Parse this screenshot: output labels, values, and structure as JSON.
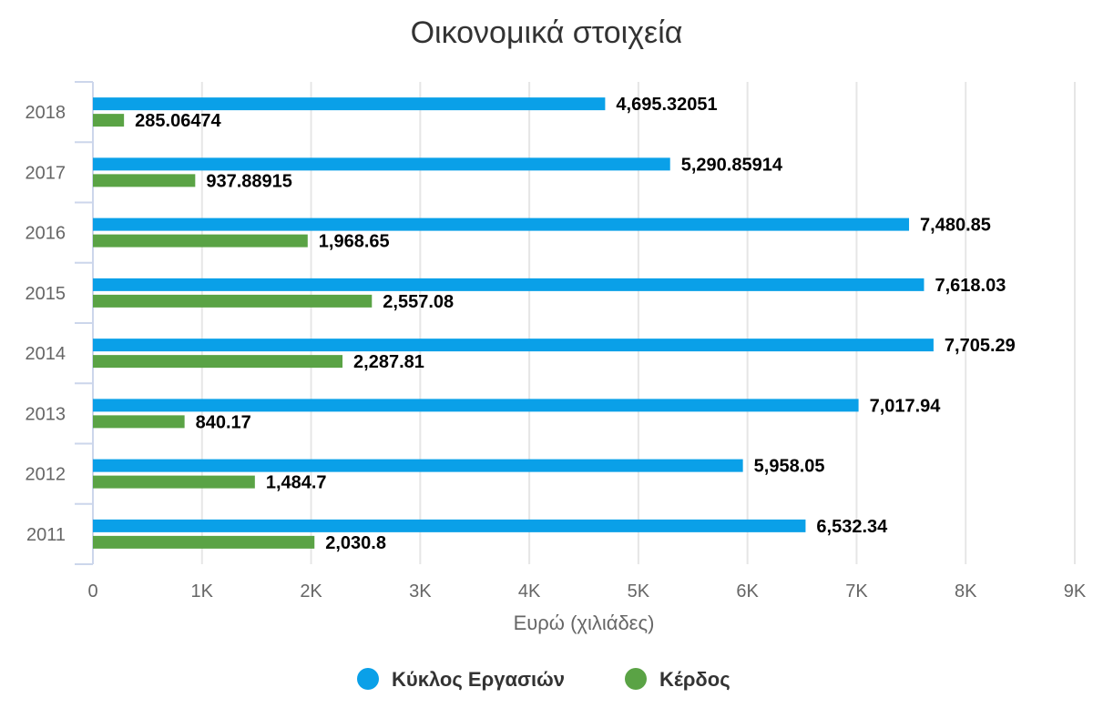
{
  "chart_data": {
    "type": "bar",
    "orientation": "horizontal",
    "title": "Οικονομικά στοιχεία",
    "xlabel": "Ευρώ (χιλιάδες)",
    "ylabel": "",
    "categories": [
      "2018",
      "2017",
      "2016",
      "2015",
      "2014",
      "2013",
      "2012",
      "2011"
    ],
    "series": [
      {
        "name": "Κύκλος Εργασιών",
        "color": "#0aa0e8",
        "values": [
          4695.32051,
          5290.85914,
          7480.85,
          7618.03,
          7705.29,
          7017.94,
          5958.05,
          6532.34
        ],
        "labels": [
          "4,695.32051",
          "5,290.85914",
          "7,480.85",
          "7,618.03",
          "7,705.29",
          "7,017.94",
          "5,958.05",
          "6,532.34"
        ]
      },
      {
        "name": "Κέρδος",
        "color": "#5aa345",
        "values": [
          285.06474,
          937.88915,
          1968.65,
          2557.08,
          2287.81,
          840.17,
          1484.7,
          2030.8
        ],
        "labels": [
          "285.06474",
          "937.88915",
          "1,968.65",
          "2,557.08",
          "2,287.81",
          "840.17",
          "1,484.7",
          "2,030.8"
        ]
      }
    ],
    "xlim": [
      0,
      9000
    ],
    "xticks": [
      0,
      1000,
      2000,
      3000,
      4000,
      5000,
      6000,
      7000,
      8000,
      9000
    ],
    "xtick_labels": [
      "0",
      "1K",
      "2K",
      "3K",
      "4K",
      "5K",
      "6K",
      "7K",
      "8K",
      "9K"
    ],
    "grid": true,
    "legend_position": "bottom-center"
  }
}
